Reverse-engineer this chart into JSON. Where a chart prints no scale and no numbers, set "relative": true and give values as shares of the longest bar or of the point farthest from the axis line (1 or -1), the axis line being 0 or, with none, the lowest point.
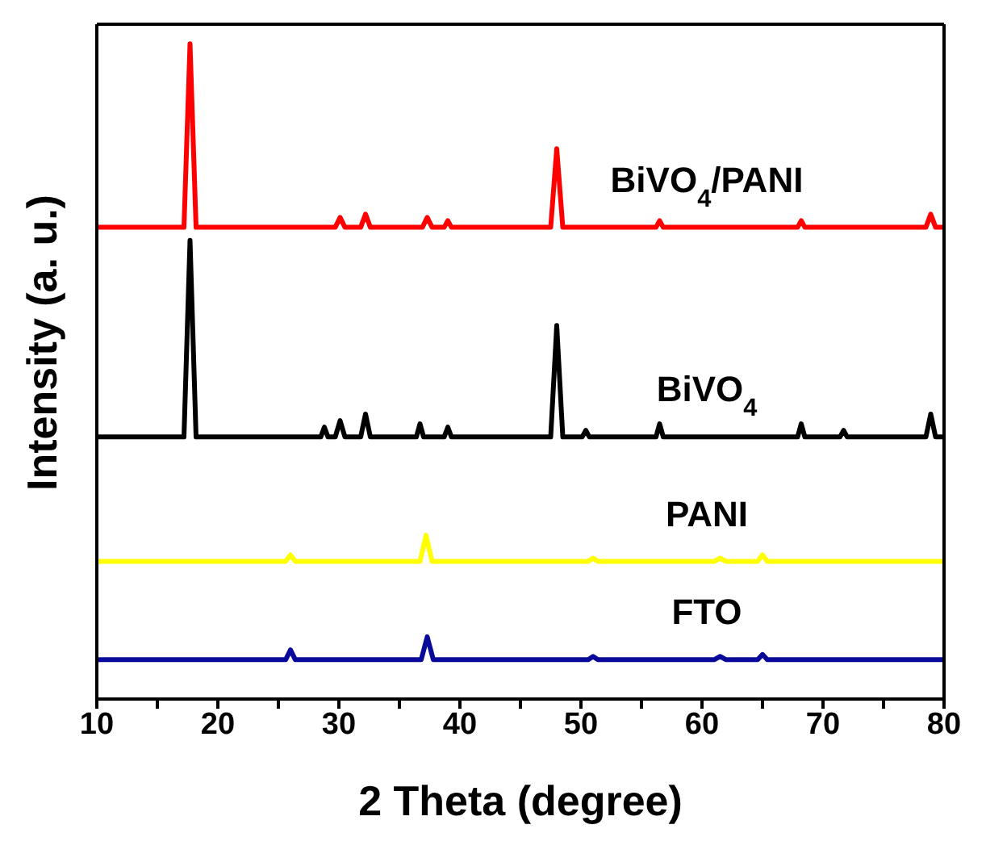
{
  "chart_data": {
    "type": "line",
    "relative": true,
    "xlabel": "2 Theta (degree)",
    "ylabel": "Intensity (a. u.)",
    "xlim": [
      10,
      80
    ],
    "xticks": [
      10,
      {
        "value": 15,
        "label": null
      },
      20,
      {
        "value": 25,
        "label": null
      },
      30,
      {
        "value": 35,
        "label": null
      },
      40,
      {
        "value": 45,
        "label": null
      },
      50,
      {
        "value": 55,
        "label": null
      },
      60,
      {
        "value": 65,
        "label": null
      },
      70,
      {
        "value": 75,
        "label": null
      },
      80
    ],
    "legend": false,
    "marker": "none",
    "line_style": "solid",
    "series": [
      {
        "name": "BiVO$_{4}$/PANI",
        "color": "#ff0000",
        "x": [
          10,
          17.2,
          17.7,
          18.2,
          29.7,
          30.1,
          30.5,
          31.8,
          32.2,
          32.6,
          36.9,
          37.3,
          37.7,
          38.7,
          39,
          39.3,
          47.5,
          48,
          48.5,
          56.2,
          56.5,
          56.8,
          67.9,
          68.2,
          68.5,
          78.5,
          78.9,
          79.3,
          80
        ],
        "values": [
          0.72,
          0.72,
          1,
          0.72,
          0.72,
          0.735,
          0.72,
          0.72,
          0.74,
          0.72,
          0.72,
          0.735,
          0.72,
          0.72,
          0.73,
          0.72,
          0.72,
          0.84,
          0.72,
          0.72,
          0.73,
          0.72,
          0.72,
          0.73,
          0.72,
          0.72,
          0.74,
          0.72,
          0.72
        ]
      },
      {
        "name": "BiVO$_{4}$",
        "color": "#000000",
        "x": [
          10,
          17.2,
          17.7,
          18.2,
          28.5,
          28.8,
          29.1,
          29.7,
          30.1,
          30.5,
          31.8,
          32.2,
          32.6,
          36.4,
          36.7,
          37,
          38.7,
          39,
          39.3,
          47.5,
          48,
          48.5,
          50.1,
          50.4,
          50.7,
          56.2,
          56.5,
          56.8,
          67.9,
          68.2,
          68.5,
          71.4,
          71.7,
          72,
          78.5,
          78.9,
          79.3,
          80
        ],
        "values": [
          0.4,
          0.4,
          0.7,
          0.4,
          0.4,
          0.415,
          0.4,
          0.4,
          0.425,
          0.4,
          0.4,
          0.435,
          0.4,
          0.4,
          0.42,
          0.4,
          0.4,
          0.415,
          0.4,
          0.4,
          0.57,
          0.4,
          0.4,
          0.41,
          0.4,
          0.4,
          0.42,
          0.4,
          0.4,
          0.42,
          0.4,
          0.4,
          0.41,
          0.4,
          0.4,
          0.435,
          0.4,
          0.4
        ]
      },
      {
        "name": "PANI",
        "color": "#ffff00",
        "x": [
          10,
          25.6,
          26,
          26.4,
          36.7,
          37.2,
          37.7,
          50.6,
          51,
          51.4,
          61,
          61.5,
          62,
          64.6,
          65,
          65.4,
          80
        ],
        "values": [
          0.21,
          0.21,
          0.22,
          0.21,
          0.21,
          0.25,
          0.21,
          0.21,
          0.215,
          0.21,
          0.21,
          0.215,
          0.21,
          0.21,
          0.22,
          0.21,
          0.21
        ]
      },
      {
        "name": "FTO",
        "color": "#0a0a9a",
        "x": [
          10,
          25.6,
          26,
          26.4,
          36.8,
          37.3,
          37.8,
          50.6,
          51,
          51.4,
          61,
          61.5,
          62,
          64.6,
          65,
          65.4,
          80
        ],
        "values": [
          0.06,
          0.06,
          0.075,
          0.06,
          0.06,
          0.095,
          0.06,
          0.06,
          0.065,
          0.06,
          0.06,
          0.065,
          0.06,
          0.06,
          0.068,
          0.06,
          0.06
        ]
      }
    ]
  }
}
